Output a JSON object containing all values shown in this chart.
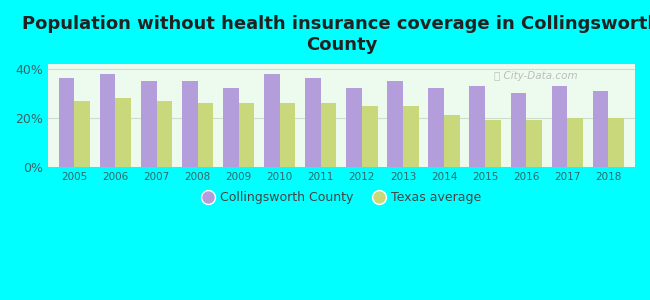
{
  "title": "Population without health insurance coverage in Collingsworth\nCounty",
  "years": [
    2005,
    2006,
    2007,
    2008,
    2009,
    2010,
    2011,
    2012,
    2013,
    2014,
    2015,
    2016,
    2017,
    2018
  ],
  "collingsworth": [
    36,
    38,
    35,
    35,
    32,
    38,
    36,
    32,
    35,
    32,
    33,
    30,
    33,
    31
  ],
  "texas": [
    27,
    28,
    27,
    26,
    26,
    26,
    26,
    25,
    25,
    21,
    19,
    19,
    20,
    20
  ],
  "collingsworth_color": "#b39ddb",
  "texas_color": "#c8d87a",
  "background_color": "#00ffff",
  "plot_bg_color": "#edfaee",
  "ylim": [
    0,
    42
  ],
  "yticks": [
    0,
    20,
    40
  ],
  "ytick_labels": [
    "0%",
    "20%",
    "40%"
  ],
  "bar_width": 0.38,
  "title_fontsize": 13,
  "legend_label_collingsworth": "Collingsworth County",
  "legend_label_texas": "Texas average"
}
